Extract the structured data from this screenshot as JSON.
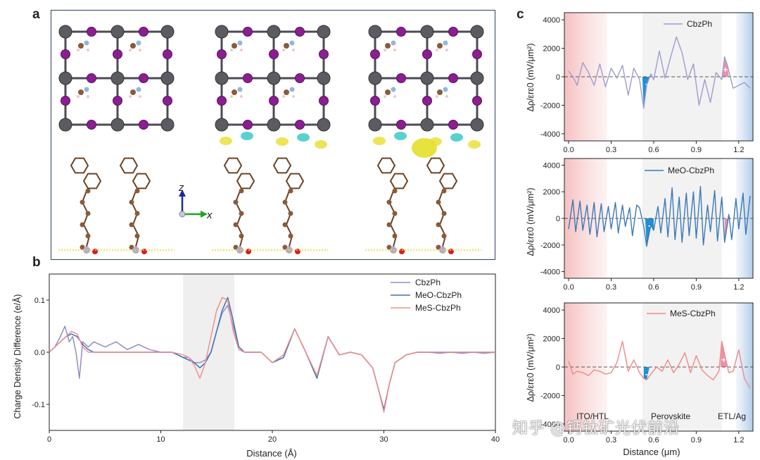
{
  "panels": {
    "a": "a",
    "b": "b",
    "c": "c"
  },
  "panel_a": {
    "axis_z": "z",
    "axis_x": "x",
    "color_frame": "#2f3f66"
  },
  "watermark": "知乎 @钙钛矿光伏前沿",
  "chart_data": [
    {
      "id": "b",
      "type": "line",
      "title": "",
      "xlabel": "Distance (Å)",
      "ylabel": "Charge Density Difference (e/Å)",
      "xlim": [
        0,
        40
      ],
      "ylim": [
        -0.15,
        0.15
      ],
      "xticks": [
        "0",
        "10",
        "20",
        "30",
        "40"
      ],
      "yticks": [
        "0.1",
        "0.0",
        "-0.1"
      ],
      "shaded_region": [
        12,
        16.6
      ],
      "legend_position": "top-right",
      "series": [
        {
          "name": "CbzPh",
          "color": "#8f8fc8",
          "x": [
            0,
            0.5,
            1,
            1.4,
            1.8,
            2.1,
            2.4,
            2.7,
            3,
            3.5,
            4,
            5,
            6,
            7,
            8,
            9,
            10,
            11,
            12,
            12.5,
            13,
            13.5,
            14,
            14.5,
            15,
            15.5,
            16,
            16.5,
            17,
            17.5,
            18,
            19,
            20,
            21,
            22,
            23,
            24,
            25,
            26,
            27,
            28,
            29,
            29.5,
            30,
            30.5,
            31,
            32,
            33,
            34,
            35,
            36,
            37,
            38,
            39,
            40
          ],
          "y": [
            0,
            0.01,
            0.03,
            0.05,
            0.02,
            0.03,
            0.0,
            -0.05,
            0.02,
            0.01,
            0.02,
            0.01,
            0.02,
            0.005,
            0.015,
            0.005,
            0.0,
            0.0,
            -0.01,
            -0.01,
            -0.02,
            -0.02,
            -0.015,
            0.0,
            0.04,
            0.075,
            0.09,
            0.05,
            0.01,
            0.0,
            0.0,
            0.0,
            -0.02,
            -0.01,
            0.045,
            0.0,
            -0.045,
            0.03,
            -0.005,
            0.0,
            -0.005,
            -0.03,
            -0.07,
            -0.11,
            -0.06,
            -0.02,
            -0.005,
            0.0,
            0.0,
            -0.002,
            0.0,
            -0.002,
            0.0,
            -0.002,
            0.0
          ]
        },
        {
          "name": "MeO-CbzPh",
          "color": "#3c73b4",
          "x": [
            0,
            0.5,
            1,
            1.5,
            2,
            2.5,
            3,
            3.5,
            4,
            5,
            6,
            7,
            8,
            9,
            10,
            11,
            12,
            12.5,
            13,
            13.5,
            14,
            14.5,
            15,
            15.5,
            16,
            16.5,
            17,
            17.5,
            18,
            19,
            20,
            21,
            22,
            23,
            24,
            25,
            26,
            27,
            28,
            29,
            29.5,
            30,
            30.5,
            31,
            32,
            33,
            34,
            35,
            36,
            37,
            38,
            39,
            40
          ],
          "y": [
            0,
            0.01,
            0.02,
            0.03,
            0.035,
            0.03,
            0.015,
            0.005,
            0.0,
            0.0,
            0.0,
            0.0,
            0.0,
            0.0,
            0.0,
            0.0,
            -0.01,
            -0.015,
            -0.02,
            -0.03,
            -0.02,
            0.0,
            0.04,
            0.08,
            0.105,
            0.06,
            0.01,
            0.0,
            0.0,
            0.0,
            -0.02,
            -0.01,
            0.045,
            0.0,
            -0.05,
            0.03,
            -0.005,
            0.0,
            -0.005,
            -0.03,
            -0.07,
            -0.11,
            -0.06,
            -0.02,
            -0.005,
            0.0,
            0.0,
            0.0,
            0.0,
            0.0,
            0.0,
            0.0,
            0.0
          ]
        },
        {
          "name": "MeS-CbzPh",
          "color": "#f0908c",
          "x": [
            0,
            0.5,
            1,
            1.5,
            2,
            2.5,
            3,
            3.5,
            4,
            5,
            6,
            7,
            8,
            9,
            10,
            11,
            12,
            12.5,
            13,
            13.5,
            14,
            14.5,
            15,
            15.5,
            16,
            16.5,
            17,
            17.5,
            18,
            19,
            20,
            21,
            22,
            23,
            24,
            25,
            26,
            27,
            28,
            29,
            29.5,
            30,
            30.5,
            31,
            32,
            33,
            34,
            35,
            36,
            37,
            38,
            39,
            40
          ],
          "y": [
            0,
            0.01,
            0.02,
            0.03,
            0.04,
            0.035,
            0.01,
            0.0,
            0.0,
            0.0,
            0.0,
            0.0,
            0.0,
            0.0,
            0.0,
            0.0,
            -0.005,
            -0.01,
            -0.025,
            -0.05,
            -0.02,
            0.03,
            0.08,
            0.105,
            0.1,
            0.04,
            0.005,
            0.0,
            0.0,
            0.0,
            -0.02,
            -0.005,
            0.045,
            0.0,
            -0.045,
            0.03,
            -0.005,
            0.0,
            -0.005,
            -0.03,
            -0.07,
            -0.115,
            -0.06,
            -0.02,
            -0.005,
            0.0,
            0.0,
            0.0,
            0.0,
            0.0,
            0.0,
            0.0,
            0.0
          ]
        }
      ]
    },
    {
      "id": "c1",
      "type": "line",
      "legend": "CbzPh",
      "color": "#9d9ccd",
      "ylabel": "Δρ/εrε0 (mV/μm²)",
      "xlabel": "",
      "xlim": [
        -0.03,
        1.3
      ],
      "ylim": [
        -4500,
        4500
      ],
      "yticks": [
        "4000",
        "2000",
        "0",
        "-2000",
        "-4000"
      ],
      "xticks": [
        "0.0",
        "0.3",
        "0.6",
        "0.9",
        "1.2"
      ],
      "x": [
        0,
        0.03,
        0.06,
        0.1,
        0.14,
        0.18,
        0.22,
        0.26,
        0.3,
        0.34,
        0.38,
        0.42,
        0.46,
        0.5,
        0.53,
        0.55,
        0.58,
        0.6,
        0.64,
        0.68,
        0.72,
        0.76,
        0.8,
        0.84,
        0.88,
        0.92,
        0.96,
        1.0,
        1.04,
        1.08,
        1.1,
        1.12,
        1.16,
        1.2,
        1.24,
        1.28
      ],
      "y": [
        400,
        0,
        -600,
        1000,
        300,
        -600,
        900,
        -700,
        600,
        -100,
        800,
        -1300,
        600,
        -200,
        -2200,
        -600,
        200,
        -200,
        1800,
        -100,
        1400,
        2800,
        1700,
        -200,
        900,
        -2000,
        -200,
        -1800,
        300,
        -200,
        1400,
        800,
        -800,
        -600,
        -400,
        -800
      ],
      "fill_negative": [
        0.52,
        0.58
      ],
      "fill_positive": [
        1.08,
        1.13
      ]
    },
    {
      "id": "c2",
      "type": "line",
      "legend": "MeO-CbzPh",
      "color": "#3c79b6",
      "ylabel": "Δρ/εrε0 (mV/μm²)",
      "xlabel": "",
      "xlim": [
        -0.03,
        1.3
      ],
      "ylim": [
        -4500,
        4500
      ],
      "yticks": [
        "4000",
        "2000",
        "0",
        "-2000",
        "-4000"
      ],
      "xticks": [
        "0.0",
        "0.3",
        "0.6",
        "0.9",
        "1.2"
      ],
      "x": [
        0,
        0.03,
        0.05,
        0.08,
        0.1,
        0.13,
        0.15,
        0.18,
        0.2,
        0.23,
        0.25,
        0.28,
        0.3,
        0.33,
        0.35,
        0.38,
        0.4,
        0.43,
        0.45,
        0.48,
        0.5,
        0.53,
        0.55,
        0.58,
        0.6,
        0.63,
        0.65,
        0.68,
        0.7,
        0.73,
        0.75,
        0.78,
        0.8,
        0.83,
        0.85,
        0.88,
        0.9,
        0.93,
        0.95,
        0.98,
        1.0,
        1.03,
        1.05,
        1.08,
        1.1,
        1.13,
        1.15,
        1.18,
        1.2,
        1.23,
        1.25,
        1.28
      ],
      "y": [
        -800,
        1400,
        -1000,
        1300,
        -900,
        1000,
        -1200,
        1200,
        -1400,
        1100,
        -1000,
        900,
        -800,
        1200,
        -1100,
        1000,
        -600,
        800,
        -1300,
        1000,
        800,
        -600,
        -2100,
        -500,
        -900,
        900,
        -1100,
        1500,
        -1400,
        2300,
        -1600,
        1600,
        -1800,
        1900,
        -1300,
        2000,
        -1500,
        2400,
        -2000,
        1000,
        -1000,
        2100,
        -1700,
        1600,
        -1800,
        300,
        -1600,
        1500,
        -800,
        1900,
        -1200,
        1700
      ],
      "fill_negative": [
        0.54,
        0.6
      ],
      "fill_positive": [
        1.1,
        1.14
      ]
    },
    {
      "id": "c3",
      "type": "line",
      "legend": "MeS-CbzPh",
      "color": "#ee8a86",
      "ylabel": "Δρ/εrε0 (mV/μm²)",
      "xlabel": "Distance (μm)",
      "xlim": [
        -0.03,
        1.3
      ],
      "ylim": [
        -4500,
        4500
      ],
      "yticks": [
        "4000",
        "2000",
        "0",
        "-2000",
        "-4000"
      ],
      "xticks": [
        "0.0",
        "0.3",
        "0.6",
        "0.9",
        "1.2"
      ],
      "region_labels": [
        "ITO/HTL",
        "Perovskite",
        "ETL/Ag"
      ],
      "x": [
        0,
        0.03,
        0.06,
        0.1,
        0.14,
        0.18,
        0.22,
        0.26,
        0.3,
        0.34,
        0.38,
        0.42,
        0.46,
        0.5,
        0.53,
        0.55,
        0.58,
        0.62,
        0.66,
        0.7,
        0.74,
        0.78,
        0.82,
        0.86,
        0.9,
        0.94,
        0.98,
        1.02,
        1.06,
        1.08,
        1.1,
        1.13,
        1.16,
        1.2,
        1.24,
        1.28
      ],
      "y": [
        400,
        -500,
        -300,
        -400,
        -600,
        -200,
        -300,
        -500,
        -400,
        300,
        1800,
        -300,
        500,
        -400,
        -800,
        -900,
        -500,
        0,
        -300,
        500,
        -400,
        200,
        1000,
        -400,
        800,
        -200,
        -600,
        -900,
        -300,
        1800,
        900,
        -400,
        -300,
        1200,
        -800,
        -1500
      ],
      "fill_negative": [
        0.53,
        0.57
      ],
      "fill_positive": [
        1.07,
        1.12
      ]
    }
  ]
}
